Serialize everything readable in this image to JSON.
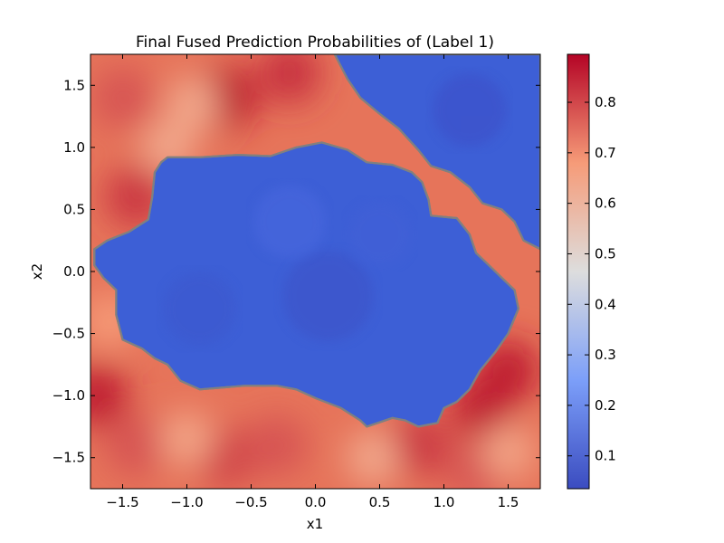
{
  "chart_data": {
    "type": "heatmap",
    "title": "Final Fused Prediction Probabilities of (Label 1)",
    "xlabel": "x1",
    "ylabel": "x2",
    "xlim": [
      -1.75,
      1.75
    ],
    "ylim": [
      -1.75,
      1.75
    ],
    "x_ticks": [
      -1.5,
      -1.0,
      -0.5,
      0.0,
      0.5,
      1.0,
      1.5
    ],
    "x_tick_labels": [
      "−1.5",
      "−1.0",
      "−0.5",
      "0.0",
      "0.5",
      "1.0",
      "1.5"
    ],
    "y_ticks": [
      -1.5,
      -1.0,
      -0.5,
      0.0,
      0.5,
      1.0,
      1.5
    ],
    "y_tick_labels": [
      "−1.5",
      "−1.0",
      "−0.5",
      "0.0",
      "0.5",
      "1.0",
      "1.5"
    ],
    "colormap": "coolwarm",
    "colorbar": {
      "range": [
        0.035,
        0.895
      ],
      "ticks": [
        0.1,
        0.2,
        0.3,
        0.4,
        0.5,
        0.6,
        0.7,
        0.8
      ],
      "tick_labels": [
        "0.1",
        "0.2",
        "0.3",
        "0.4",
        "0.5",
        "0.6",
        "0.7",
        "0.8"
      ]
    },
    "decision_contour": {
      "level": 0.5,
      "color": "#808080"
    },
    "regions": {
      "low_probability": {
        "value_range": [
          0.04,
          0.12
        ],
        "color": "#3d5fd6",
        "description_areas": [
          "central blob",
          "upper-right corner"
        ]
      },
      "high_probability": {
        "value_range": [
          0.62,
          0.89
        ],
        "color": "#e6745a",
        "description_areas": [
          "surrounding ring"
        ]
      }
    },
    "central_region": [
      [
        -1.72,
        0.18
      ],
      [
        -1.62,
        0.25
      ],
      [
        -1.45,
        0.32
      ],
      [
        -1.3,
        0.42
      ],
      [
        -1.27,
        0.6
      ],
      [
        -1.25,
        0.8
      ],
      [
        -1.2,
        0.88
      ],
      [
        -1.15,
        0.92
      ],
      [
        -0.9,
        0.92
      ],
      [
        -0.6,
        0.94
      ],
      [
        -0.35,
        0.93
      ],
      [
        -0.15,
        1.0
      ],
      [
        0.05,
        1.04
      ],
      [
        0.25,
        0.98
      ],
      [
        0.4,
        0.88
      ],
      [
        0.6,
        0.86
      ],
      [
        0.75,
        0.8
      ],
      [
        0.83,
        0.72
      ],
      [
        0.88,
        0.58
      ],
      [
        0.9,
        0.45
      ],
      [
        1.1,
        0.43
      ],
      [
        1.2,
        0.3
      ],
      [
        1.25,
        0.15
      ],
      [
        1.35,
        0.05
      ],
      [
        1.45,
        -0.05
      ],
      [
        1.55,
        -0.15
      ],
      [
        1.58,
        -0.3
      ],
      [
        1.5,
        -0.5
      ],
      [
        1.4,
        -0.65
      ],
      [
        1.28,
        -0.8
      ],
      [
        1.2,
        -0.95
      ],
      [
        1.1,
        -1.05
      ],
      [
        1.0,
        -1.1
      ],
      [
        0.95,
        -1.22
      ],
      [
        0.8,
        -1.25
      ],
      [
        0.7,
        -1.2
      ],
      [
        0.6,
        -1.18
      ],
      [
        0.4,
        -1.25
      ],
      [
        0.35,
        -1.2
      ],
      [
        0.2,
        -1.1
      ],
      [
        0.0,
        -1.02
      ],
      [
        -0.15,
        -0.95
      ],
      [
        -0.3,
        -0.92
      ],
      [
        -0.55,
        -0.92
      ],
      [
        -0.9,
        -0.95
      ],
      [
        -1.05,
        -0.88
      ],
      [
        -1.15,
        -0.75
      ],
      [
        -1.25,
        -0.7
      ],
      [
        -1.35,
        -0.62
      ],
      [
        -1.5,
        -0.55
      ],
      [
        -1.55,
        -0.35
      ],
      [
        -1.55,
        -0.15
      ],
      [
        -1.65,
        -0.05
      ],
      [
        -1.72,
        0.05
      ]
    ],
    "upper_right_region": [
      [
        0.15,
        1.75
      ],
      [
        0.25,
        1.55
      ],
      [
        0.35,
        1.4
      ],
      [
        0.5,
        1.27
      ],
      [
        0.65,
        1.15
      ],
      [
        0.8,
        0.98
      ],
      [
        0.9,
        0.85
      ],
      [
        1.05,
        0.8
      ],
      [
        1.2,
        0.68
      ],
      [
        1.3,
        0.55
      ],
      [
        1.45,
        0.5
      ],
      [
        1.55,
        0.4
      ],
      [
        1.62,
        0.25
      ],
      [
        1.75,
        0.18
      ],
      [
        1.75,
        1.75
      ]
    ],
    "hotspots": [
      {
        "x": -1.5,
        "y": 1.4,
        "v": 0.78
      },
      {
        "x": -0.7,
        "y": 1.4,
        "v": 0.88
      },
      {
        "x": -0.2,
        "y": 1.6,
        "v": 0.83
      },
      {
        "x": -1.4,
        "y": 0.6,
        "v": 0.82
      },
      {
        "x": -1.7,
        "y": -1.0,
        "v": 0.86
      },
      {
        "x": -1.4,
        "y": -1.4,
        "v": 0.78
      },
      {
        "x": -0.7,
        "y": -1.5,
        "v": 0.8
      },
      {
        "x": -0.3,
        "y": -1.4,
        "v": 0.78
      },
      {
        "x": 0.8,
        "y": -1.4,
        "v": 0.82
      },
      {
        "x": 1.3,
        "y": -1.1,
        "v": 0.86
      },
      {
        "x": 1.5,
        "y": -0.8,
        "v": 0.86
      },
      {
        "x": 1.25,
        "y": -1.6,
        "v": 0.78
      }
    ],
    "coolspots": [
      {
        "x": -1.15,
        "y": 1.0,
        "v": 0.64
      },
      {
        "x": -0.95,
        "y": 1.35,
        "v": 0.64
      },
      {
        "x": -1.0,
        "y": -1.35,
        "v": 0.65
      },
      {
        "x": 0.45,
        "y": -1.5,
        "v": 0.64
      },
      {
        "x": 1.5,
        "y": -1.45,
        "v": 0.65
      },
      {
        "x": -1.6,
        "y": -0.4,
        "v": 0.68
      }
    ]
  }
}
